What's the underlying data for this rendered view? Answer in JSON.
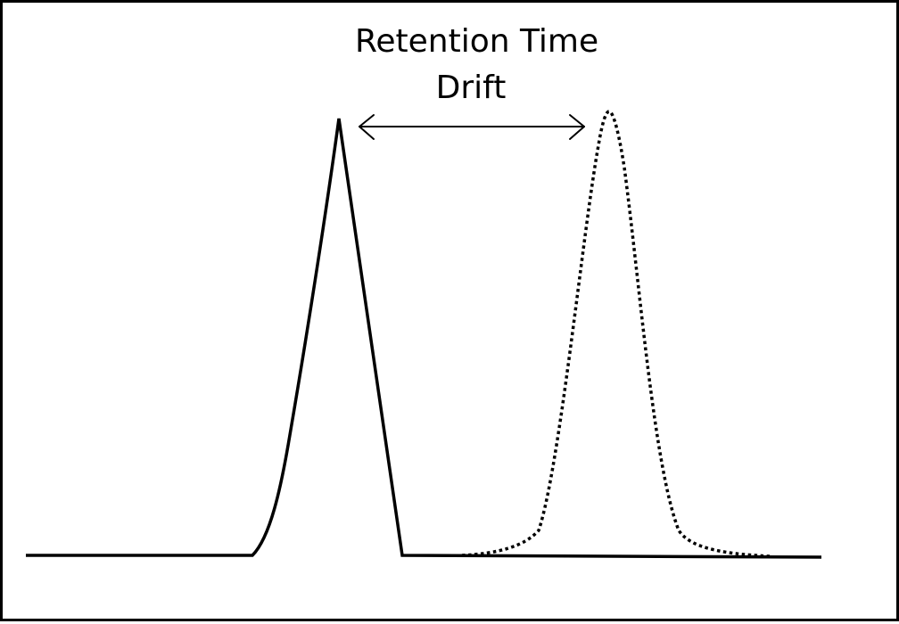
{
  "diagram": {
    "label_line1": "Retention Time",
    "label_line2": "Drift",
    "colors": {
      "stroke": "#000000",
      "background": "#ffffff"
    }
  }
}
